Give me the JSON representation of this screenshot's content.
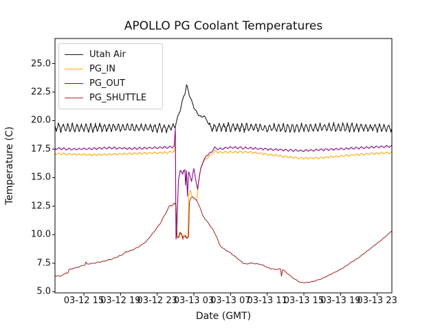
{
  "figure": {
    "background": "#ffffff"
  },
  "chart_data": {
    "type": "line",
    "title": "APOLLO PG Coolant Temperatures",
    "xlabel": "Date (GMT)",
    "ylabel": "Temperature (C)",
    "grid": false,
    "legend": {
      "position": "upper left",
      "entries": [
        "Utah Air",
        "PG_IN",
        "PG_OUT",
        "PG_SHUTTLE"
      ]
    },
    "x_axis": {
      "unit": "hours after 03-12 12:00 GMT",
      "lim": [
        -0.15,
        36.6
      ],
      "ticks": [
        {
          "t": 3,
          "label": "03-12 15"
        },
        {
          "t": 7,
          "label": "03-12 19"
        },
        {
          "t": 11,
          "label": "03-12 23"
        },
        {
          "t": 15,
          "label": "03-13 03"
        },
        {
          "t": 19,
          "label": "03-13 07"
        },
        {
          "t": 23,
          "label": "03-13 11"
        },
        {
          "t": 27,
          "label": "03-13 15"
        },
        {
          "t": 31,
          "label": "03-13 19"
        },
        {
          "t": 35,
          "label": "03-13 23"
        }
      ]
    },
    "y_axis": {
      "lim": [
        4.9,
        27.2
      ],
      "ticks": [
        5.0,
        7.5,
        10.0,
        12.5,
        15.0,
        17.5,
        20.0,
        22.5,
        25.0
      ],
      "tick_labels": [
        "5.0",
        "7.5",
        "10.0",
        "12.5",
        "15.0",
        "17.5",
        "20.0",
        "22.5",
        "25.0"
      ]
    },
    "series": [
      {
        "name": "Utah Air",
        "color": "#111111",
        "osc_period": 0.5,
        "points": [
          [
            -0.15,
            19.4,
            0.42
          ],
          [
            3,
            19.35,
            0.42
          ],
          [
            6,
            19.4,
            0.44
          ],
          [
            9,
            19.35,
            0.42
          ],
          [
            12,
            19.38,
            0.4
          ],
          [
            12.9,
            19.45,
            0.3
          ],
          [
            13.1,
            19.9,
            0.16
          ],
          [
            13.4,
            20.7,
            0.18
          ],
          [
            13.7,
            21.5,
            0.18
          ],
          [
            13.95,
            22.3,
            0.2
          ],
          [
            14.2,
            23.0,
            0.2
          ],
          [
            14.4,
            22.6,
            0.14
          ],
          [
            14.7,
            21.8,
            0.12
          ],
          [
            15.1,
            21.0,
            0.1
          ],
          [
            15.5,
            20.5,
            0.08
          ],
          [
            15.85,
            20.3,
            0.07
          ],
          [
            16.1,
            20.45,
            0.07
          ],
          [
            16.35,
            20.1,
            0.08
          ],
          [
            16.55,
            19.85,
            0.12
          ],
          [
            16.75,
            19.4,
            0.42
          ],
          [
            20,
            19.4,
            0.42
          ],
          [
            24,
            19.35,
            0.42
          ],
          [
            28,
            19.4,
            0.42
          ],
          [
            32,
            19.4,
            0.42
          ],
          [
            36.6,
            19.4,
            0.42
          ]
        ]
      },
      {
        "name": "PG_IN",
        "color": "#ffa500",
        "osc_period": 0.55,
        "points": [
          [
            -0.15,
            17.1,
            0.09
          ],
          [
            2,
            17.05,
            0.09
          ],
          [
            4,
            17.0,
            0.09
          ],
          [
            6,
            17.05,
            0.09
          ],
          [
            8,
            17.1,
            0.09
          ],
          [
            10,
            17.15,
            0.09
          ],
          [
            12,
            17.2,
            0.09
          ],
          [
            12.9,
            17.3,
            0.08
          ],
          [
            12.98,
            18.2,
            0.05
          ],
          [
            13.06,
            9.8,
            0.1
          ],
          [
            13.25,
            9.9,
            0.28
          ],
          [
            13.55,
            10.05,
            0.3
          ],
          [
            13.85,
            9.9,
            0.3
          ],
          [
            14.1,
            9.75,
            0.28
          ],
          [
            14.35,
            9.85,
            0.22
          ],
          [
            14.45,
            13.5,
            0.12
          ],
          [
            14.6,
            13.85,
            0.12
          ],
          [
            14.8,
            13.45,
            0.1
          ],
          [
            15.05,
            13.15,
            0.1
          ],
          [
            15.3,
            13.0,
            0.08
          ],
          [
            15.6,
            15.2,
            0.06
          ],
          [
            15.9,
            16.25,
            0.06
          ],
          [
            16.25,
            16.6,
            0.06
          ],
          [
            16.6,
            16.85,
            0.06
          ],
          [
            17.0,
            17.1,
            0.07
          ],
          [
            17.3,
            17.35,
            0.08
          ],
          [
            17.65,
            17.2,
            0.09
          ],
          [
            19,
            17.25,
            0.09
          ],
          [
            21,
            17.25,
            0.09
          ],
          [
            23,
            17.05,
            0.09
          ],
          [
            25,
            16.85,
            0.09
          ],
          [
            26.5,
            16.7,
            0.09
          ],
          [
            28.5,
            16.72,
            0.09
          ],
          [
            30.5,
            16.85,
            0.09
          ],
          [
            32.5,
            17.0,
            0.09
          ],
          [
            34.5,
            17.1,
            0.09
          ],
          [
            36.6,
            17.2,
            0.09
          ]
        ]
      },
      {
        "name": "PG_OUT",
        "color": "#800080",
        "osc_period": 0.55,
        "points": [
          [
            -0.15,
            17.55,
            0.1
          ],
          [
            2,
            17.5,
            0.1
          ],
          [
            4,
            17.55,
            0.1
          ],
          [
            6,
            17.62,
            0.11
          ],
          [
            8,
            17.55,
            0.1
          ],
          [
            10,
            17.6,
            0.1
          ],
          [
            12,
            17.65,
            0.1
          ],
          [
            12.85,
            17.72,
            0.1
          ],
          [
            12.98,
            19.3,
            0.04
          ],
          [
            13.05,
            9.6,
            0.04
          ],
          [
            13.14,
            10.6,
            0.08
          ],
          [
            13.32,
            14.9,
            0.1
          ],
          [
            13.55,
            15.5,
            0.3
          ],
          [
            13.85,
            15.6,
            0.33
          ],
          [
            14.02,
            15.5,
            0.28
          ],
          [
            14.1,
            14.3,
            0.08
          ],
          [
            14.2,
            15.6,
            0.28
          ],
          [
            14.3,
            13.4,
            0.04
          ],
          [
            14.42,
            15.5,
            0.28
          ],
          [
            14.6,
            15.0,
            0.14
          ],
          [
            14.75,
            14.7,
            0.1
          ],
          [
            14.9,
            15.5,
            0.14
          ],
          [
            15.0,
            15.8,
            0.12
          ],
          [
            15.15,
            15.0,
            0.1
          ],
          [
            15.4,
            14.05,
            0.07
          ],
          [
            15.75,
            15.8,
            0.07
          ],
          [
            16.05,
            16.5,
            0.07
          ],
          [
            16.35,
            16.9,
            0.07
          ],
          [
            16.65,
            17.1,
            0.07
          ],
          [
            16.95,
            17.25,
            0.08
          ],
          [
            17.25,
            17.65,
            0.08
          ],
          [
            17.55,
            17.5,
            0.09
          ],
          [
            19,
            17.65,
            0.1
          ],
          [
            21,
            17.6,
            0.1
          ],
          [
            23,
            17.5,
            0.1
          ],
          [
            25,
            17.42,
            0.1
          ],
          [
            27,
            17.36,
            0.1
          ],
          [
            29,
            17.45,
            0.1
          ],
          [
            31,
            17.52,
            0.1
          ],
          [
            33,
            17.6,
            0.1
          ],
          [
            35,
            17.7,
            0.1
          ],
          [
            36.6,
            17.75,
            0.1
          ]
        ]
      },
      {
        "name": "PG_SHUTTLE",
        "color": "#a52a2a",
        "osc_period": 0.6,
        "points": [
          [
            -0.15,
            6.42,
            0.03
          ],
          [
            0.4,
            6.36,
            0.03
          ],
          [
            1.0,
            6.6,
            0.03
          ],
          [
            1.28,
            6.78,
            0.14
          ],
          [
            1.4,
            6.95,
            0.03
          ],
          [
            2.1,
            7.1,
            0.03
          ],
          [
            3.1,
            7.35,
            0.03
          ],
          [
            3.2,
            7.52,
            0.14
          ],
          [
            3.35,
            7.42,
            0.03
          ],
          [
            4.2,
            7.52,
            0.03
          ],
          [
            5.2,
            7.68,
            0.03
          ],
          [
            6.2,
            7.9,
            0.03
          ],
          [
            7.2,
            8.25,
            0.04
          ],
          [
            7.6,
            8.5,
            0.06
          ],
          [
            8.2,
            8.62,
            0.03
          ],
          [
            9.0,
            8.95,
            0.03
          ],
          [
            9.8,
            9.4,
            0.03
          ],
          [
            10.5,
            10.1,
            0.04
          ],
          [
            11.3,
            10.95,
            0.04
          ],
          [
            12.0,
            12.0,
            0.05
          ],
          [
            12.35,
            12.5,
            0.09
          ],
          [
            12.65,
            12.65,
            0.16
          ],
          [
            13.05,
            12.6,
            0.14
          ],
          [
            13.17,
            9.95,
            0.1
          ],
          [
            13.35,
            9.8,
            0.26
          ],
          [
            13.65,
            10.05,
            0.3
          ],
          [
            13.95,
            9.8,
            0.3
          ],
          [
            14.2,
            9.65,
            0.26
          ],
          [
            14.42,
            9.95,
            0.18
          ],
          [
            14.52,
            12.9,
            0.1
          ],
          [
            14.72,
            13.2,
            0.12
          ],
          [
            14.92,
            13.35,
            0.1
          ],
          [
            15.12,
            13.15,
            0.08
          ],
          [
            15.35,
            12.9,
            0.06
          ],
          [
            15.65,
            12.45,
            0.04
          ],
          [
            15.95,
            11.7,
            0.03
          ],
          [
            16.25,
            11.35,
            0.03
          ],
          [
            16.6,
            11.0,
            0.03
          ],
          [
            17.1,
            10.4,
            0.03
          ],
          [
            17.5,
            9.8,
            0.03
          ],
          [
            17.8,
            9.1,
            0.03
          ],
          [
            18.2,
            8.8,
            0.03
          ],
          [
            19.0,
            8.4,
            0.04
          ],
          [
            19.7,
            7.95,
            0.03
          ],
          [
            20.4,
            7.5,
            0.03
          ],
          [
            20.8,
            7.42,
            0.03
          ],
          [
            21.1,
            7.52,
            0.03
          ],
          [
            21.7,
            7.46,
            0.03
          ],
          [
            22.3,
            7.4,
            0.03
          ],
          [
            22.7,
            7.25,
            0.03
          ],
          [
            23.3,
            7.05,
            0.04
          ],
          [
            23.95,
            6.95,
            0.03
          ],
          [
            24.45,
            7.0,
            0.03
          ],
          [
            24.55,
            6.45,
            0.18
          ],
          [
            24.68,
            6.95,
            0.03
          ],
          [
            25.3,
            6.55,
            0.03
          ],
          [
            25.9,
            6.15,
            0.03
          ],
          [
            26.6,
            5.82,
            0.03
          ],
          [
            27.3,
            5.8,
            0.03
          ],
          [
            28.0,
            5.9,
            0.03
          ],
          [
            28.8,
            6.1,
            0.03
          ],
          [
            29.6,
            6.4,
            0.03
          ],
          [
            30.5,
            6.75,
            0.03
          ],
          [
            31.3,
            7.1,
            0.03
          ],
          [
            32.2,
            7.6,
            0.03
          ],
          [
            33.0,
            8.0,
            0.03
          ],
          [
            33.8,
            8.5,
            0.03
          ],
          [
            34.6,
            9.0,
            0.03
          ],
          [
            35.4,
            9.5,
            0.03
          ],
          [
            36.0,
            9.9,
            0.03
          ],
          [
            36.6,
            10.35,
            0.03
          ]
        ]
      }
    ]
  }
}
